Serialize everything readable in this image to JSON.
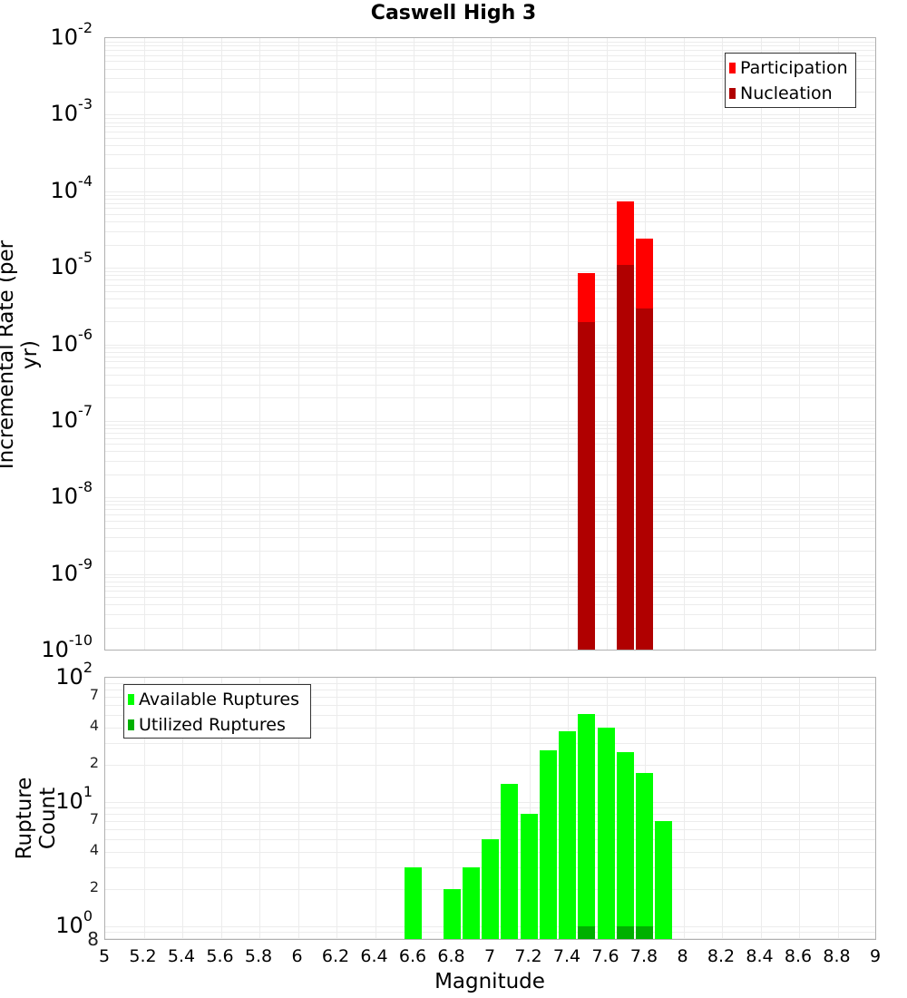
{
  "title": "Caswell High 3",
  "colors": {
    "participation": "#ff0000",
    "nucleation": "#b00000",
    "available": "#00ff00",
    "utilized": "#00b000",
    "grid": "#ececec",
    "border": "#b0b0b0"
  },
  "top_chart": {
    "ylabel": "Incremental Rate (per yr)",
    "yticks": [
      "10^-2",
      "10^-3",
      "10^-4",
      "10^-5",
      "10^-6",
      "10^-7",
      "10^-8",
      "10^-9",
      "10^-10"
    ],
    "legend": [
      "Participation",
      "Nucleation"
    ]
  },
  "bottom_chart": {
    "ylabel": "Rupture Count",
    "yticks_major": [
      "10^2",
      "10^1",
      "10^0"
    ],
    "yticks_minor": [
      "7",
      "4",
      "2",
      "7",
      "4",
      "2",
      "8"
    ],
    "legend": [
      "Available Ruptures",
      "Utilized Ruptures"
    ]
  },
  "xaxis": {
    "label": "Magnitude",
    "ticks": [
      "5",
      "5.2",
      "5.4",
      "5.6",
      "5.8",
      "6",
      "6.2",
      "6.4",
      "6.6",
      "6.8",
      "7",
      "7.2",
      "7.4",
      "7.6",
      "7.8",
      "8",
      "8.2",
      "8.4",
      "8.6",
      "8.8",
      "9"
    ]
  },
  "chart_data": [
    {
      "type": "bar",
      "title": "Caswell High 3",
      "xlabel": "Magnitude",
      "ylabel": "Incremental Rate (per yr)",
      "yscale": "log",
      "ylim": [
        1e-10,
        0.01
      ],
      "xlim": [
        5,
        9
      ],
      "grid": true,
      "legend_position": "top-right",
      "x": [
        7.5,
        7.7,
        7.8
      ],
      "series": [
        {
          "name": "Participation",
          "color": "#ff0000",
          "values": [
            8.5e-06,
            7.4e-05,
            2.4e-05
          ]
        },
        {
          "name": "Nucleation",
          "color": "#b00000",
          "values": [
            1.95e-06,
            1.1e-05,
            2.9e-06
          ]
        }
      ]
    },
    {
      "type": "bar",
      "title": "",
      "xlabel": "Magnitude",
      "ylabel": "Rupture Count",
      "yscale": "log",
      "ylim": [
        0.8,
        100
      ],
      "xlim": [
        5,
        9
      ],
      "grid": true,
      "legend_position": "top-left",
      "x": [
        6.6,
        6.8,
        6.9,
        7.0,
        7.1,
        7.2,
        7.3,
        7.4,
        7.5,
        7.6,
        7.7,
        7.8,
        7.9
      ],
      "series": [
        {
          "name": "Available Ruptures",
          "color": "#00ff00",
          "values": [
            3,
            2,
            3,
            5,
            14,
            8,
            26,
            37,
            51,
            40,
            25,
            17,
            7
          ]
        },
        {
          "name": "Utilized Ruptures",
          "color": "#00b000",
          "values": [
            0,
            0,
            0,
            0,
            0,
            0,
            0,
            0,
            1,
            0,
            1,
            1,
            0
          ]
        }
      ]
    }
  ]
}
